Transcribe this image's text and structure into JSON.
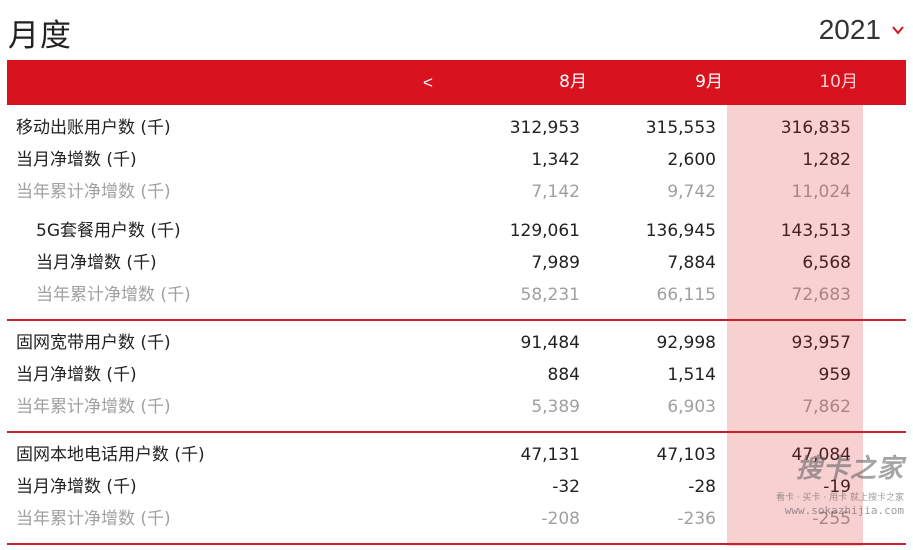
{
  "title": "月度",
  "year": "2021",
  "header": {
    "prev": "<",
    "months": [
      "8月",
      "9月",
      "10月"
    ]
  },
  "rows": [
    {
      "label": "移动出账用户数 (千)",
      "values": [
        "312,953",
        "315,553",
        "316,835"
      ]
    },
    {
      "label": "当月净增数 (千)",
      "values": [
        "1,342",
        "2,600",
        "1,282"
      ]
    },
    {
      "label": "当年累计净增数 (千)",
      "values": [
        "7,142",
        "9,742",
        "11,024"
      ]
    },
    {
      "label": "5G套餐用户数 (千)",
      "values": [
        "129,061",
        "136,945",
        "143,513"
      ]
    },
    {
      "label": "当月净增数 (千)",
      "values": [
        "7,989",
        "7,884",
        "6,568"
      ]
    },
    {
      "label": "当年累计净增数 (千)",
      "values": [
        "58,231",
        "66,115",
        "72,683"
      ]
    },
    {
      "label": "固网宽带用户数 (千)",
      "values": [
        "91,484",
        "92,998",
        "93,957"
      ]
    },
    {
      "label": "当月净增数 (千)",
      "values": [
        "884",
        "1,514",
        "959"
      ]
    },
    {
      "label": "当年累计净增数 (千)",
      "values": [
        "5,389",
        "6,903",
        "7,862"
      ]
    },
    {
      "label": "固网本地电话用户数 (千)",
      "values": [
        "47,131",
        "47,103",
        "47,084"
      ]
    },
    {
      "label": "当月净增数 (千)",
      "values": [
        "-32",
        "-28",
        "-19"
      ]
    },
    {
      "label": "当年累计净增数 (千)",
      "values": [
        "-208",
        "-236",
        "-255"
      ]
    }
  ],
  "watermark": {
    "text": "搜卡之家",
    "tagline": "看卡 · 买卡 · 用卡 就上搜卡之家",
    "url": "www.sokazhijia.com"
  },
  "colors": {
    "accent": "#d8121f",
    "muted": "#a0a0a0",
    "text": "#222222"
  }
}
